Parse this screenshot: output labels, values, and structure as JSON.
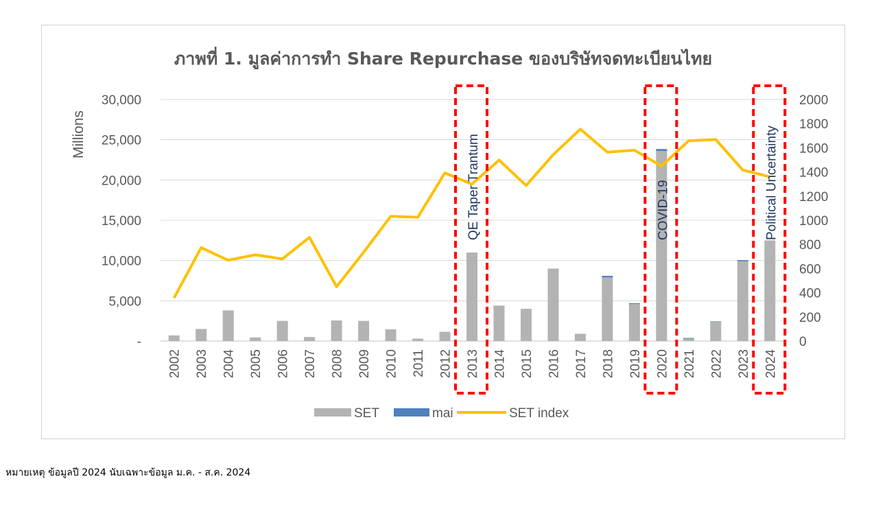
{
  "chart_data": {
    "type": "bar",
    "title": "ภาพที่ 1. มูลค่าการทำ Share Repurchase ของบริษัทจดทะเบียนไทย",
    "ylabel": "Millions",
    "ylim": [
      0,
      30000
    ],
    "y_ticks": [
      "-",
      "5,000",
      "10,000",
      "15,000",
      "20,000",
      "25,000",
      "30,000"
    ],
    "y2lim": [
      0,
      2000
    ],
    "y2_ticks": [
      "0",
      "200",
      "400",
      "600",
      "800",
      "1000",
      "1200",
      "1400",
      "1600",
      "1800",
      "2000"
    ],
    "categories": [
      "2002",
      "2003",
      "2004",
      "2005",
      "2006",
      "2007",
      "2008",
      "2009",
      "2010",
      "2011",
      "2012",
      "2013",
      "2014",
      "2015",
      "2016",
      "2017",
      "2018",
      "2019",
      "2020",
      "2021",
      "2022",
      "2023",
      "2024"
    ],
    "series": [
      {
        "name": "SET",
        "kind": "bar",
        "stacked": true,
        "axis": "left",
        "color": "#b3b3b3",
        "values": [
          700,
          1500,
          3800,
          450,
          2500,
          500,
          2550,
          2500,
          1450,
          300,
          1150,
          11000,
          4400,
          4000,
          9000,
          900,
          7900,
          4600,
          23600,
          300,
          2400,
          9900,
          12500
        ]
      },
      {
        "name": "mai",
        "kind": "bar",
        "stacked": true,
        "axis": "left",
        "color": "#4f81bd",
        "values": [
          0,
          0,
          0,
          0,
          0,
          0,
          0,
          0,
          0,
          0,
          0,
          0,
          0,
          0,
          0,
          0,
          200,
          100,
          250,
          80,
          50,
          150,
          0
        ]
      },
      {
        "name": "SET index",
        "kind": "line",
        "axis": "right",
        "color": "#ffc000",
        "values": [
          357,
          773,
          669,
          714,
          680,
          858,
          450,
          735,
          1033,
          1025,
          1392,
          1299,
          1498,
          1288,
          1543,
          1754,
          1564,
          1580,
          1449,
          1658,
          1669,
          1416,
          1360
        ]
      }
    ],
    "annotations": [
      {
        "label": "QE Taper Trantum",
        "category": "2013"
      },
      {
        "label": "COVID-19",
        "category": "2020"
      },
      {
        "label": "Political Uncertainty",
        "category": "2024"
      }
    ],
    "legend_position": "bottom",
    "grid": true
  },
  "footnote": "หมายเหตุ ข้อมูลปี 2024 นับเฉพาะข้อมูล ม.ค. - ส.ค. 2024"
}
